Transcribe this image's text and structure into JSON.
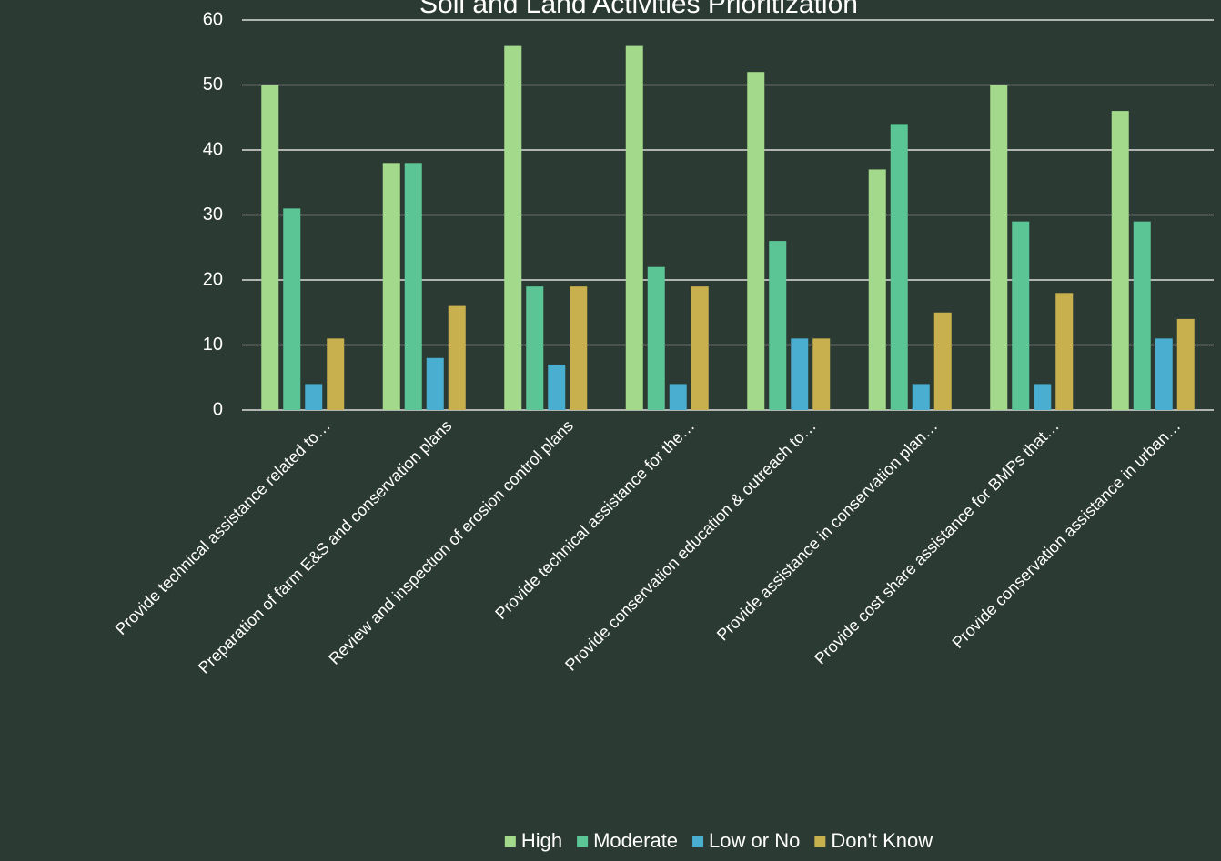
{
  "chart_data": {
    "type": "bar",
    "title": "Soil and Land Activities Prioritization",
    "categories": [
      "Provide technical assistance related to…",
      "Preparation of farm E&S and conservation plans",
      "Review and inspection of erosion control plans",
      "Provide technical assistance for the…",
      "Provide conservation education & outreach to…",
      "Provide assistance in conservation plan…",
      "Provide cost share assistance for BMPs that…",
      "Provide conservation assistance in urban…"
    ],
    "series": [
      {
        "name": "High",
        "color": "#a3d98a",
        "values": [
          50,
          38,
          56,
          56,
          52,
          37,
          50,
          46
        ]
      },
      {
        "name": "Moderate",
        "color": "#5cc595",
        "values": [
          31,
          38,
          19,
          22,
          26,
          44,
          29,
          29
        ]
      },
      {
        "name": "Low or No",
        "color": "#4aaed0",
        "values": [
          4,
          8,
          7,
          4,
          11,
          4,
          4,
          11
        ]
      },
      {
        "name": "Don't Know",
        "color": "#c9b04f",
        "values": [
          11,
          16,
          19,
          19,
          11,
          15,
          18,
          14
        ]
      }
    ],
    "ylim": [
      0,
      60
    ],
    "yticks": [
      0,
      10,
      20,
      30,
      40,
      50,
      60
    ],
    "grid": true,
    "legend": "bottom"
  }
}
